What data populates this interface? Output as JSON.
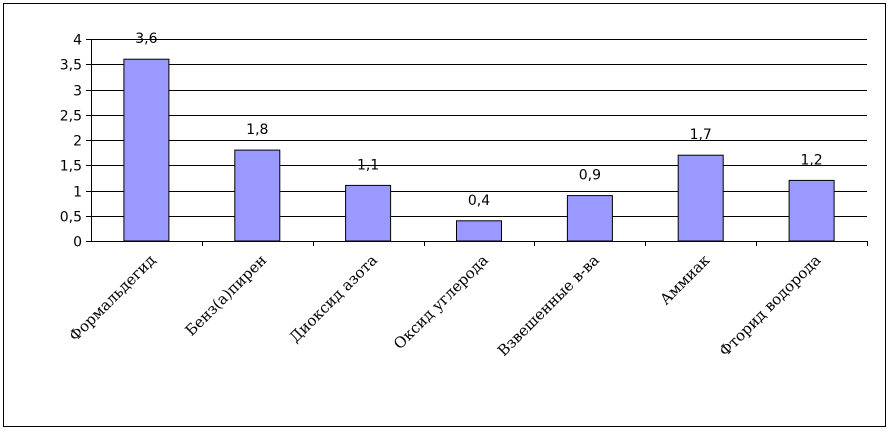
{
  "chart_data": {
    "type": "bar",
    "title": "",
    "xlabel": "",
    "ylabel": "",
    "categories": [
      "Формальдегид",
      "Бенз(а)пирен",
      "Диоксид азота",
      "Оксид углерода",
      "Взвешенные в-ва",
      "Аммиак",
      "Фторид водорода"
    ],
    "values": [
      3.6,
      1.8,
      1.1,
      0.4,
      0.9,
      1.7,
      1.2
    ],
    "value_labels": [
      "3,6",
      "1,8",
      "1,1",
      "0,4",
      "0,9",
      "1,7",
      "1,2"
    ],
    "yticks": [
      "0",
      "0,5",
      "1",
      "1,5",
      "2",
      "2,5",
      "3",
      "3,5",
      "4"
    ],
    "ylim": [
      0,
      4
    ],
    "grid": true,
    "legend": "none",
    "bar_color": "#9999ff",
    "bar_edge_color": "#000000"
  }
}
